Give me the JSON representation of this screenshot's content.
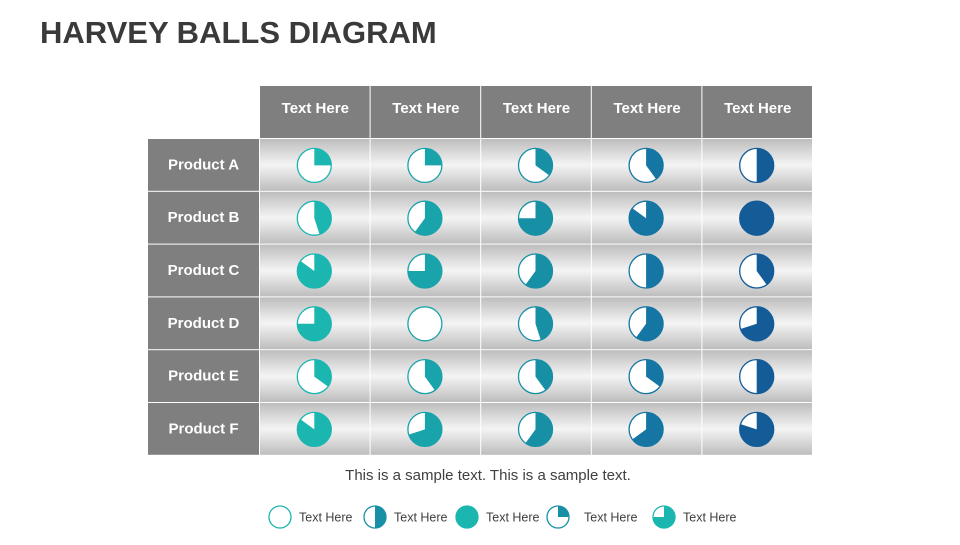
{
  "header": {
    "title": "HARVEY BALLS DIAGRAM"
  },
  "table": {
    "columns": [
      "Text Here",
      "Text Here",
      "Text Here",
      "Text Here",
      "Text Here"
    ],
    "column_colors": [
      "#1cb6b0",
      "#19a3ab",
      "#1790a6",
      "#1575a3",
      "#145c98"
    ],
    "rows": [
      {
        "label": "Product A",
        "values": [
          0.25,
          0.25,
          0.35,
          0.4,
          0.5
        ]
      },
      {
        "label": "Product B",
        "values": [
          0.45,
          0.6,
          0.75,
          0.85,
          1
        ]
      },
      {
        "label": "Product C",
        "values": [
          0.85,
          0.75,
          0.6,
          0.5,
          0.4
        ]
      },
      {
        "label": "Product D",
        "values": [
          0.75,
          0,
          0.45,
          0.6,
          0.7
        ]
      },
      {
        "label": "Product E",
        "values": [
          0.35,
          0.4,
          0.4,
          0.35,
          0.5
        ]
      },
      {
        "label": "Product F",
        "values": [
          0.85,
          0.7,
          0.6,
          0.65,
          0.8
        ]
      }
    ]
  },
  "footer": {
    "text": "This is a sample text. This is a sample text."
  },
  "legend": [
    {
      "value": 0,
      "label": "Text Here",
      "color": "#1cb6b0"
    },
    {
      "value": 0.5,
      "label": "Text Here",
      "color": "#1790a6"
    },
    {
      "value": 1,
      "label": "Text Here",
      "color": "#1cb6b0"
    },
    {
      "value": 0.25,
      "label": "Text Here",
      "color": "#1790a6"
    },
    {
      "value": 0.75,
      "label": "Text Here",
      "color": "#1cb6b0"
    }
  ]
}
